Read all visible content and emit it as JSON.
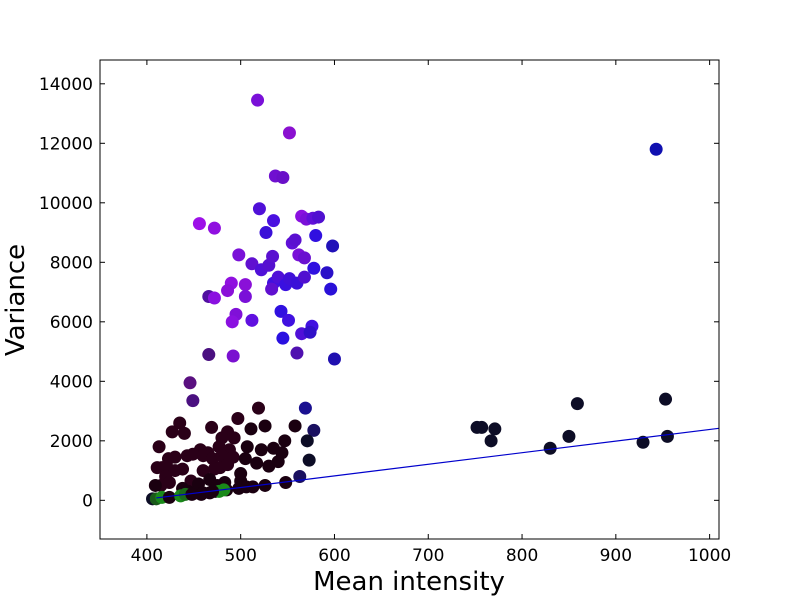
{
  "chart_data": {
    "type": "scatter",
    "xlabel": "Mean intensity",
    "ylabel": "Variance",
    "xlim": [
      350,
      1010
    ],
    "ylim": [
      -1300,
      14800
    ],
    "xticks": [
      400,
      500,
      600,
      700,
      800,
      900,
      1000
    ],
    "yticks": [
      0,
      2000,
      4000,
      6000,
      8000,
      10000,
      12000,
      14000
    ],
    "grid": false,
    "colors": {
      "green": "#1a8a1a",
      "dark": "#0d0d26",
      "darkred": "#2a0018",
      "purple": "#7a10d8",
      "violet": "#9d10e8",
      "blue": "#2a10e0",
      "navy": "#1010b0",
      "fitline": "#0000cc"
    },
    "fit_line": {
      "x": [
        410,
        1010
      ],
      "y": [
        80,
        2420
      ]
    },
    "points": [
      {
        "x": 518,
        "y": 13450,
        "c": "#7a10d8"
      },
      {
        "x": 552,
        "y": 12350,
        "c": "#8a10d0"
      },
      {
        "x": 943,
        "y": 11800,
        "c": "#1010b0"
      },
      {
        "x": 537,
        "y": 10900,
        "c": "#7010d0"
      },
      {
        "x": 545,
        "y": 10850,
        "c": "#6a10c8"
      },
      {
        "x": 520,
        "y": 9800,
        "c": "#5010d8"
      },
      {
        "x": 456,
        "y": 9300,
        "c": "#9d10e8"
      },
      {
        "x": 472,
        "y": 9150,
        "c": "#9010e0"
      },
      {
        "x": 535,
        "y": 9400,
        "c": "#4a10e0"
      },
      {
        "x": 565,
        "y": 9550,
        "c": "#8a10e0"
      },
      {
        "x": 570,
        "y": 9450,
        "c": "#7a10d8"
      },
      {
        "x": 577,
        "y": 9480,
        "c": "#6010d8"
      },
      {
        "x": 583,
        "y": 9520,
        "c": "#5010d0"
      },
      {
        "x": 527,
        "y": 9000,
        "c": "#3a10d8"
      },
      {
        "x": 580,
        "y": 8900,
        "c": "#3010e0"
      },
      {
        "x": 555,
        "y": 8650,
        "c": "#6010d8"
      },
      {
        "x": 558,
        "y": 8750,
        "c": "#5a10d0"
      },
      {
        "x": 598,
        "y": 8550,
        "c": "#2010b8"
      },
      {
        "x": 498,
        "y": 8250,
        "c": "#7a10d8"
      },
      {
        "x": 512,
        "y": 7950,
        "c": "#6010d0"
      },
      {
        "x": 522,
        "y": 7750,
        "c": "#5010d8"
      },
      {
        "x": 530,
        "y": 7900,
        "c": "#5510d0"
      },
      {
        "x": 534,
        "y": 8200,
        "c": "#5a10d0"
      },
      {
        "x": 562,
        "y": 8250,
        "c": "#7a10d8"
      },
      {
        "x": 568,
        "y": 8150,
        "c": "#6a10d0"
      },
      {
        "x": 578,
        "y": 7800,
        "c": "#3010e0"
      },
      {
        "x": 592,
        "y": 7650,
        "c": "#2a10c8"
      },
      {
        "x": 535,
        "y": 7300,
        "c": "#4010e0"
      },
      {
        "x": 540,
        "y": 7500,
        "c": "#5010d8"
      },
      {
        "x": 548,
        "y": 7250,
        "c": "#3a10e0"
      },
      {
        "x": 552,
        "y": 7450,
        "c": "#4010d8"
      },
      {
        "x": 560,
        "y": 7300,
        "c": "#3a10d8"
      },
      {
        "x": 568,
        "y": 7500,
        "c": "#5010d0"
      },
      {
        "x": 533,
        "y": 7100,
        "c": "#6010d0"
      },
      {
        "x": 505,
        "y": 7250,
        "c": "#8a10d8"
      },
      {
        "x": 490,
        "y": 7300,
        "c": "#9010e0"
      },
      {
        "x": 486,
        "y": 7050,
        "c": "#8a10d8"
      },
      {
        "x": 596,
        "y": 7100,
        "c": "#2a10d8"
      },
      {
        "x": 466,
        "y": 6850,
        "c": "#5010a0"
      },
      {
        "x": 472,
        "y": 6800,
        "c": "#8a10e0"
      },
      {
        "x": 505,
        "y": 6850,
        "c": "#7a10d8"
      },
      {
        "x": 543,
        "y": 6350,
        "c": "#3010e0"
      },
      {
        "x": 495,
        "y": 6250,
        "c": "#8010d8"
      },
      {
        "x": 491,
        "y": 6000,
        "c": "#8a10e0"
      },
      {
        "x": 512,
        "y": 6050,
        "c": "#6010e0"
      },
      {
        "x": 551,
        "y": 6050,
        "c": "#4010e0"
      },
      {
        "x": 576,
        "y": 5850,
        "c": "#4010e0"
      },
      {
        "x": 565,
        "y": 5600,
        "c": "#5010d8"
      },
      {
        "x": 574,
        "y": 5650,
        "c": "#3010c8"
      },
      {
        "x": 545,
        "y": 5450,
        "c": "#2a10e0"
      },
      {
        "x": 560,
        "y": 4950,
        "c": "#5010b0"
      },
      {
        "x": 466,
        "y": 4900,
        "c": "#4a1080"
      },
      {
        "x": 492,
        "y": 4850,
        "c": "#7a10d0"
      },
      {
        "x": 600,
        "y": 4750,
        "c": "#2010b0"
      },
      {
        "x": 446,
        "y": 3950,
        "c": "#5a1080"
      },
      {
        "x": 449,
        "y": 3350,
        "c": "#4a1080"
      },
      {
        "x": 859,
        "y": 3250,
        "c": "#0d0d26"
      },
      {
        "x": 953,
        "y": 3400,
        "c": "#0d0d26"
      },
      {
        "x": 519,
        "y": 3100,
        "c": "#2a0018"
      },
      {
        "x": 569,
        "y": 3100,
        "c": "#1a1090"
      },
      {
        "x": 435,
        "y": 2600,
        "c": "#2a0018"
      },
      {
        "x": 497,
        "y": 2750,
        "c": "#2a0018"
      },
      {
        "x": 427,
        "y": 2300,
        "c": "#2a0018"
      },
      {
        "x": 440,
        "y": 2250,
        "c": "#2a0018"
      },
      {
        "x": 469,
        "y": 2450,
        "c": "#2a0018"
      },
      {
        "x": 486,
        "y": 2300,
        "c": "#2a0018"
      },
      {
        "x": 511,
        "y": 2400,
        "c": "#1a0010"
      },
      {
        "x": 526,
        "y": 2500,
        "c": "#1a0010"
      },
      {
        "x": 558,
        "y": 2500,
        "c": "#1a0010"
      },
      {
        "x": 578,
        "y": 2350,
        "c": "#1a1060"
      },
      {
        "x": 752,
        "y": 2450,
        "c": "#0d0d26"
      },
      {
        "x": 757,
        "y": 2450,
        "c": "#0d0d26"
      },
      {
        "x": 771,
        "y": 2400,
        "c": "#0d0d26"
      },
      {
        "x": 767,
        "y": 2000,
        "c": "#0d0d26"
      },
      {
        "x": 850,
        "y": 2150,
        "c": "#0d0d26"
      },
      {
        "x": 955,
        "y": 2150,
        "c": "#0d0d26"
      },
      {
        "x": 929,
        "y": 1950,
        "c": "#0d0d26"
      },
      {
        "x": 830,
        "y": 1750,
        "c": "#0d0d26"
      },
      {
        "x": 413,
        "y": 1800,
        "c": "#2a0018"
      },
      {
        "x": 480,
        "y": 2100,
        "c": "#2a0018"
      },
      {
        "x": 493,
        "y": 2100,
        "c": "#2a0018"
      },
      {
        "x": 547,
        "y": 2000,
        "c": "#1a0010"
      },
      {
        "x": 571,
        "y": 2000,
        "c": "#0d0d26"
      },
      {
        "x": 457,
        "y": 1700,
        "c": "#2a0018"
      },
      {
        "x": 465,
        "y": 1600,
        "c": "#2a0018"
      },
      {
        "x": 477,
        "y": 1800,
        "c": "#2a0018"
      },
      {
        "x": 488,
        "y": 1700,
        "c": "#2a0018"
      },
      {
        "x": 507,
        "y": 1800,
        "c": "#1a0010"
      },
      {
        "x": 522,
        "y": 1700,
        "c": "#1a0010"
      },
      {
        "x": 535,
        "y": 1750,
        "c": "#1a0010"
      },
      {
        "x": 544,
        "y": 1600,
        "c": "#1a0010"
      },
      {
        "x": 423,
        "y": 1400,
        "c": "#2a0018"
      },
      {
        "x": 430,
        "y": 1450,
        "c": "#2a0018"
      },
      {
        "x": 443,
        "y": 1500,
        "c": "#2a0018"
      },
      {
        "x": 449,
        "y": 1550,
        "c": "#2a0018"
      },
      {
        "x": 460,
        "y": 1500,
        "c": "#2a0018"
      },
      {
        "x": 470,
        "y": 1400,
        "c": "#2a0018"
      },
      {
        "x": 480,
        "y": 1500,
        "c": "#2a0018"
      },
      {
        "x": 492,
        "y": 1450,
        "c": "#2a0018"
      },
      {
        "x": 505,
        "y": 1400,
        "c": "#1a0010"
      },
      {
        "x": 416,
        "y": 1100,
        "c": "#2a0018"
      },
      {
        "x": 421,
        "y": 1150,
        "c": "#2a0018"
      },
      {
        "x": 438,
        "y": 1050,
        "c": "#2a0018"
      },
      {
        "x": 460,
        "y": 1000,
        "c": "#2a0018"
      },
      {
        "x": 472,
        "y": 1050,
        "c": "#2a0018"
      },
      {
        "x": 478,
        "y": 1100,
        "c": "#2a0018"
      },
      {
        "x": 486,
        "y": 1200,
        "c": "#2a0018"
      },
      {
        "x": 517,
        "y": 1250,
        "c": "#1a0010"
      },
      {
        "x": 530,
        "y": 1150,
        "c": "#1a0010"
      },
      {
        "x": 540,
        "y": 1300,
        "c": "#1a0010"
      },
      {
        "x": 573,
        "y": 1350,
        "c": "#0d0d26"
      },
      {
        "x": 411,
        "y": 1100,
        "c": "#2a0018"
      },
      {
        "x": 430,
        "y": 1000,
        "c": "#2a0018"
      },
      {
        "x": 447,
        "y": 650,
        "c": "#2a0018"
      },
      {
        "x": 455,
        "y": 550,
        "c": "#1a0010"
      },
      {
        "x": 467,
        "y": 700,
        "c": "#1a0010"
      },
      {
        "x": 475,
        "y": 500,
        "c": "#1a0010"
      },
      {
        "x": 483,
        "y": 600,
        "c": "#1a0010"
      },
      {
        "x": 500,
        "y": 650,
        "c": "#1a0010"
      },
      {
        "x": 500,
        "y": 900,
        "c": "#1a0010"
      },
      {
        "x": 420,
        "y": 800,
        "c": "#2a0018"
      },
      {
        "x": 415,
        "y": 500,
        "c": "#2a0018"
      },
      {
        "x": 409,
        "y": 500,
        "c": "#1a0010"
      },
      {
        "x": 424,
        "y": 600,
        "c": "#2a0018"
      },
      {
        "x": 438,
        "y": 400,
        "c": "#1a0010"
      },
      {
        "x": 444,
        "y": 300,
        "c": "#1a0010"
      },
      {
        "x": 452,
        "y": 250,
        "c": "#1a0010"
      },
      {
        "x": 458,
        "y": 200,
        "c": "#1a0010"
      },
      {
        "x": 467,
        "y": 250,
        "c": "#1a0010"
      },
      {
        "x": 473,
        "y": 300,
        "c": "#1a0010"
      },
      {
        "x": 485,
        "y": 350,
        "c": "#1a0010"
      },
      {
        "x": 498,
        "y": 400,
        "c": "#1a0010"
      },
      {
        "x": 506,
        "y": 450,
        "c": "#1a0010"
      },
      {
        "x": 513,
        "y": 450,
        "c": "#1a0010"
      },
      {
        "x": 526,
        "y": 500,
        "c": "#1a0010"
      },
      {
        "x": 548,
        "y": 600,
        "c": "#1a0010"
      },
      {
        "x": 563,
        "y": 800,
        "c": "#1a1060"
      },
      {
        "x": 406,
        "y": 50,
        "c": "#0d0d26"
      },
      {
        "x": 410,
        "y": 50,
        "c": "#1a5a1a"
      },
      {
        "x": 416,
        "y": 100,
        "c": "#1a8a1a"
      },
      {
        "x": 424,
        "y": 100,
        "c": "#1a0010"
      },
      {
        "x": 436,
        "y": 150,
        "c": "#1a8a1a"
      },
      {
        "x": 441,
        "y": 200,
        "c": "#1a6a1a"
      },
      {
        "x": 448,
        "y": 200,
        "c": "#1a0010"
      },
      {
        "x": 460,
        "y": 250,
        "c": "#1a0010"
      },
      {
        "x": 477,
        "y": 300,
        "c": "#1a8a1a"
      },
      {
        "x": 482,
        "y": 350,
        "c": "#1a8a1a"
      },
      {
        "x": 470,
        "y": 300,
        "c": "#1a0010"
      }
    ]
  }
}
